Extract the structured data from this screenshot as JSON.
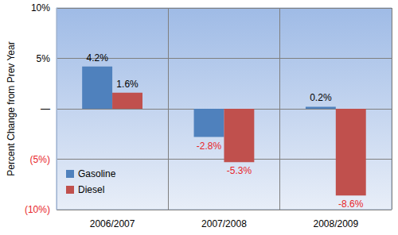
{
  "chart_data": {
    "type": "bar",
    "ylabel": "Percent Change from Prev Year",
    "categories": [
      "2006/2007",
      "2007/2008",
      "2008/2009"
    ],
    "series": [
      {
        "name": "Gasoline",
        "color": "#4f81bd",
        "values": [
          4.2,
          -2.8,
          0.2
        ],
        "value_labels": [
          "4.2%",
          "-2.8%",
          "0.2%"
        ]
      },
      {
        "name": "Diesel",
        "color": "#c0504d",
        "values": [
          1.6,
          -5.3,
          -8.6
        ],
        "value_labels": [
          "1.6%",
          "-5.3%",
          "-8.6%"
        ]
      }
    ],
    "ylim": [
      -10,
      10
    ],
    "yticks": [
      {
        "value": -10,
        "label": "(10%)"
      },
      {
        "value": -5,
        "label": "(5%)"
      },
      {
        "value": 0,
        "label": "—"
      },
      {
        "value": 5,
        "label": "5%"
      },
      {
        "value": 10,
        "label": "10%"
      }
    ],
    "grid": true,
    "legend": "lower left",
    "data_labels": true
  }
}
